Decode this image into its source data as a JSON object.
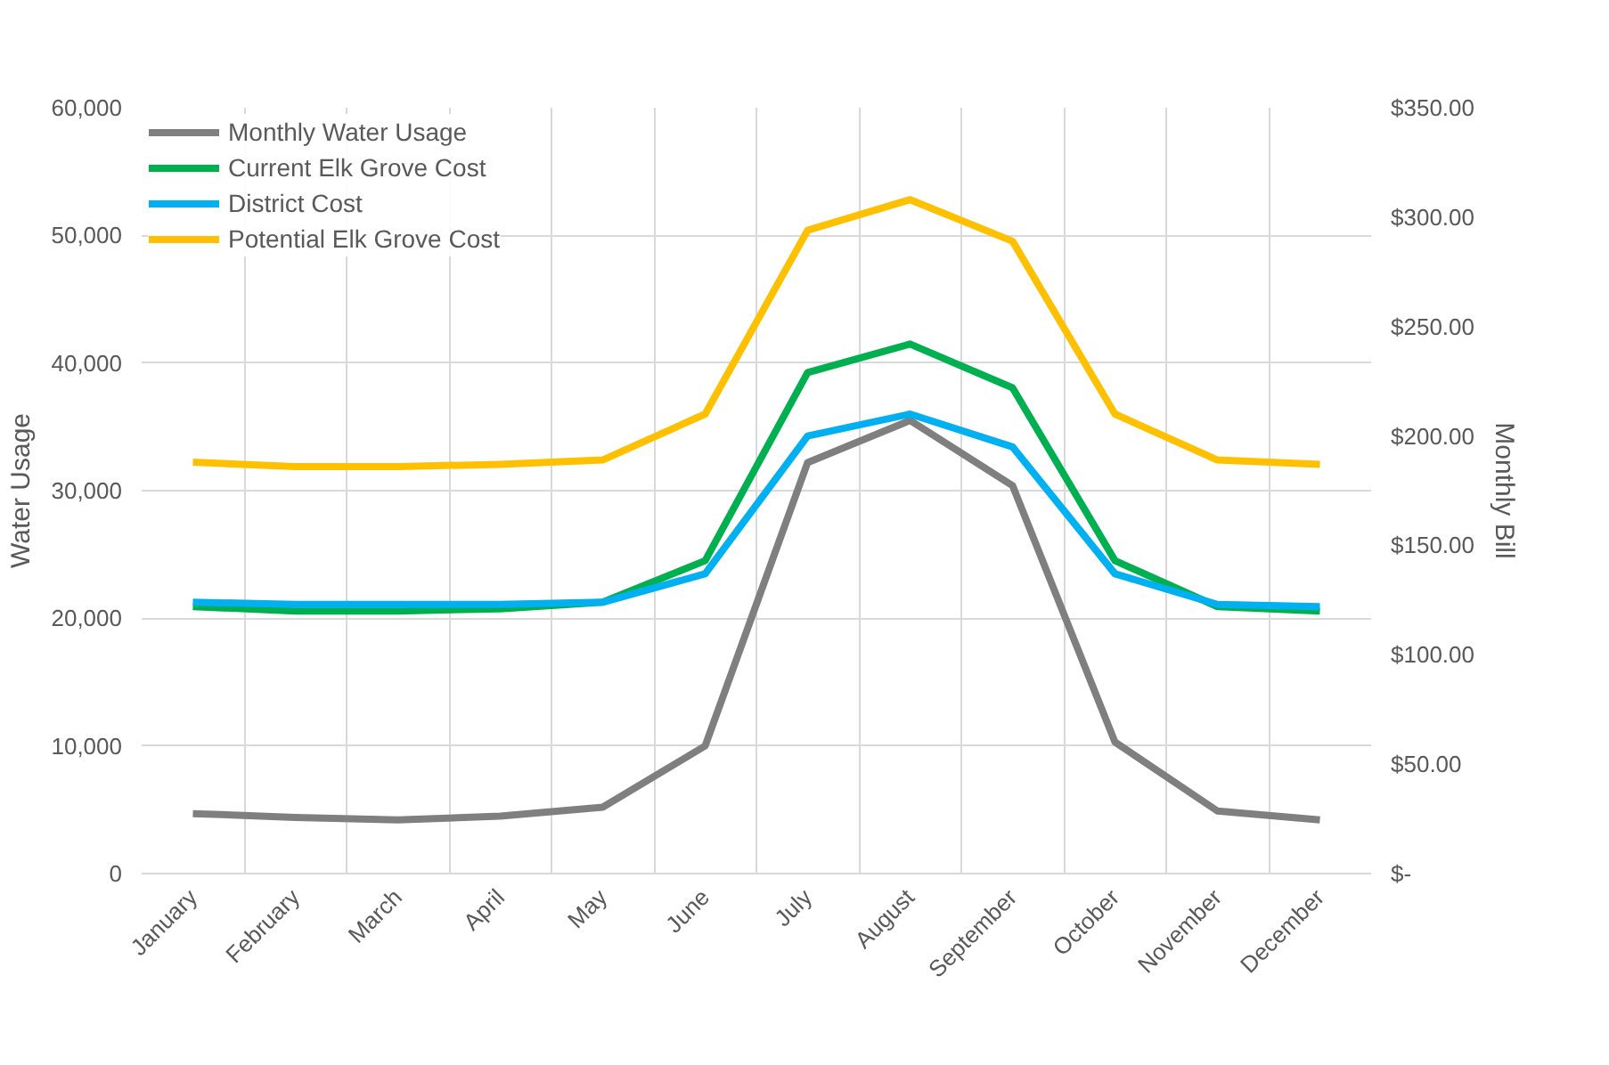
{
  "chart_data": {
    "type": "line",
    "ylabel": "Water Usage",
    "y2label": "Monthly Bill",
    "categories": [
      "January",
      "February",
      "March",
      "April",
      "May",
      "June",
      "July",
      "August",
      "September",
      "October",
      "November",
      "December"
    ],
    "series": [
      {
        "name": "Monthly Water Usage",
        "color": "#7f7f7f",
        "values": [
          4700,
          4400,
          4200,
          4500,
          5200,
          10000,
          32200,
          35500,
          30400,
          10300,
          4900,
          4200
        ]
      },
      {
        "name": "Current Elk Grove Cost",
        "color": "#00b050",
        "axis": "y2",
        "values": [
          122,
          120,
          120,
          121,
          124,
          143,
          229,
          242,
          222,
          143,
          122,
          120
        ]
      },
      {
        "name": "District Cost",
        "color": "#00b0f0",
        "axis": "y2",
        "values": [
          124,
          123,
          123,
          123,
          124,
          137,
          200,
          210,
          195,
          137,
          123,
          122
        ]
      },
      {
        "name": "Potential Elk Grove Cost",
        "color": "#ffc000",
        "axis": "y2",
        "values": [
          188,
          186,
          186,
          187,
          189,
          210,
          294,
          308,
          289,
          210,
          189,
          187
        ]
      }
    ],
    "ylim": [
      0,
      60000
    ],
    "yticks": [
      0,
      {
        "value": 10000,
        "label": "10,000"
      },
      {
        "value": 20000,
        "label": "20,000"
      },
      {
        "value": 30000,
        "label": "30,000"
      },
      {
        "value": 40000,
        "label": "40,000"
      },
      {
        "value": 50000,
        "label": "50,000"
      },
      {
        "value": 60000,
        "label": "60,000"
      }
    ],
    "y2lim": [
      0,
      350
    ],
    "y2ticks": [
      {
        "value": 0,
        "label": "$-"
      },
      {
        "value": 50,
        "label": "$50.00"
      },
      {
        "value": 100,
        "label": "$100.00"
      },
      {
        "value": 150,
        "label": "$150.00"
      },
      {
        "value": 200,
        "label": "$200.00"
      },
      {
        "value": 250,
        "label": "$250.00"
      },
      {
        "value": 300,
        "label": "$300.00"
      },
      {
        "value": 350,
        "label": "$350.00"
      }
    ],
    "grid": true,
    "legend": "top left",
    "line_style": "solid",
    "marker": "none"
  }
}
